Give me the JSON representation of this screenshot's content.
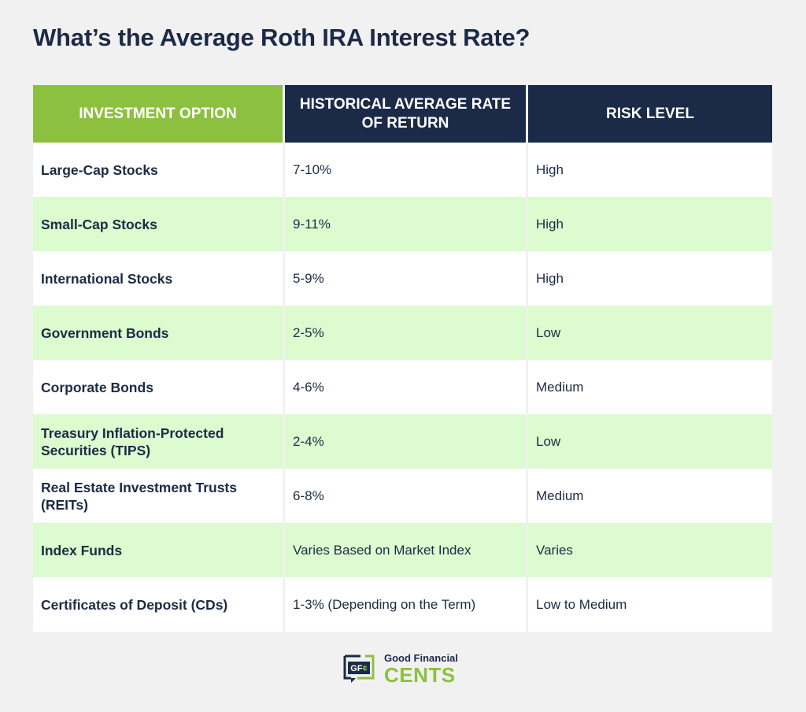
{
  "title": "What’s the Average Roth IRA Interest Rate?",
  "colors": {
    "background": "#f1f1f1",
    "navy": "#1b2a47",
    "green": "#8cc13f",
    "row_alt": "#dcfbcf",
    "row_white": "#ffffff"
  },
  "table": {
    "headers": [
      "INVESTMENT OPTION",
      "HISTORICAL AVERAGE RATE OF RETURN",
      "RISK LEVEL"
    ],
    "rows": [
      {
        "option": "Large-Cap Stocks",
        "return": "7-10%",
        "risk": "High"
      },
      {
        "option": "Small-Cap Stocks",
        "return": "9-11%",
        "risk": "High"
      },
      {
        "option": "International Stocks",
        "return": "5-9%",
        "risk": "High"
      },
      {
        "option": "Government Bonds",
        "return": "2-5%",
        "risk": "Low"
      },
      {
        "option": "Corporate Bonds",
        "return": "4-6%",
        "risk": "Medium"
      },
      {
        "option": "Treasury Inflation-Protected Securities (TIPS)",
        "return": "2-4%",
        "risk": "Low"
      },
      {
        "option": "Real Estate Investment Trusts (REITs)",
        "return": "6-8%",
        "risk": "Medium"
      },
      {
        "option": "Index Funds",
        "return": "Varies Based on Market Index",
        "risk": "Varies"
      },
      {
        "option": "Certificates of Deposit (CDs)",
        "return": "1-3% (Depending on the Term)",
        "risk": "Low to Medium"
      }
    ]
  },
  "logo": {
    "mark": "GF¢",
    "top": "Good Financial",
    "main": "CENTS",
    "icon": "gfc-logo-icon"
  }
}
